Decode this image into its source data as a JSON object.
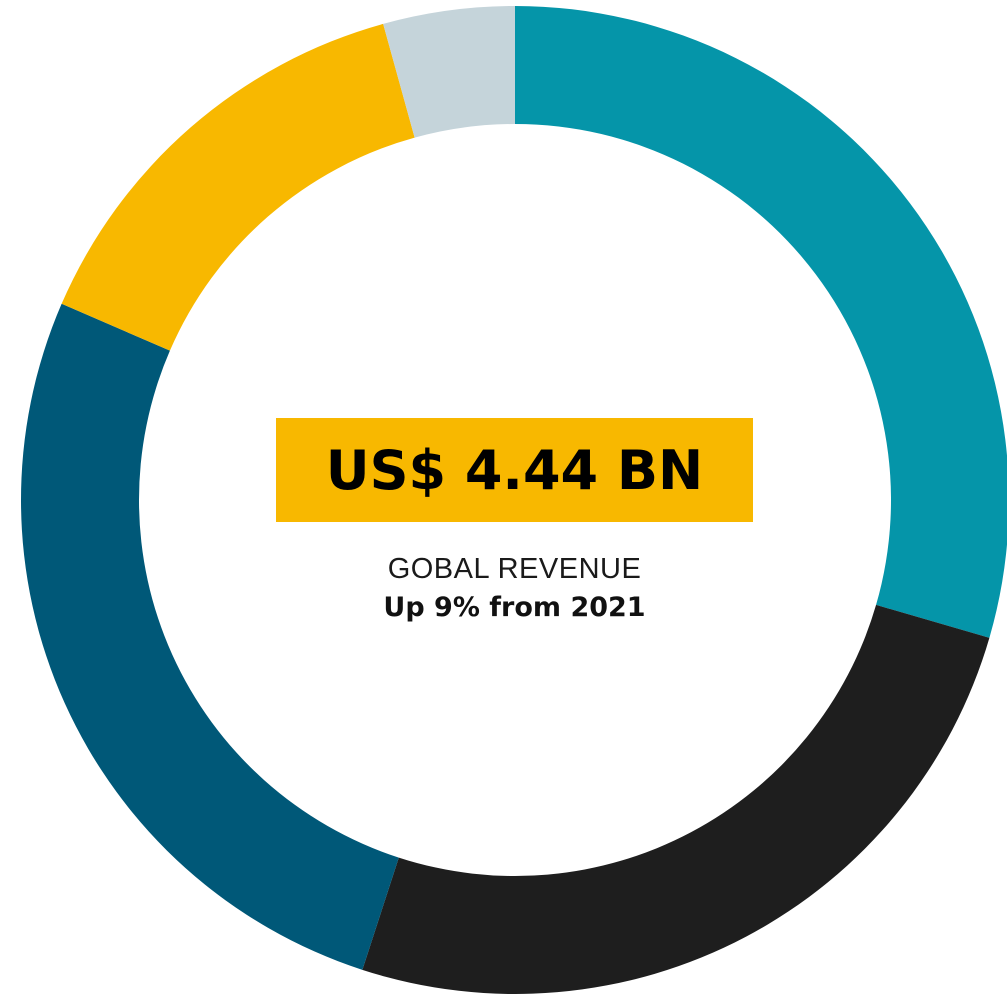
{
  "chart_data": {
    "type": "pie",
    "variant": "donut",
    "title": "",
    "slices": [
      {
        "value": 29.5,
        "color": "#0595a9"
      },
      {
        "value": 25.5,
        "color": "#1e1e1e"
      },
      {
        "value": 26.5,
        "color": "#005878"
      },
      {
        "value": 14.2,
        "color": "#f8b800"
      },
      {
        "value": 4.3,
        "color": "#c5d4da"
      }
    ],
    "center": {
      "headline": "US$ 4.44 BN",
      "label": "GOBAL REVENUE",
      "change": "Up 9% from 2021"
    }
  },
  "colors": {
    "headline_background": "#f8b800",
    "background": "#ffffff"
  }
}
